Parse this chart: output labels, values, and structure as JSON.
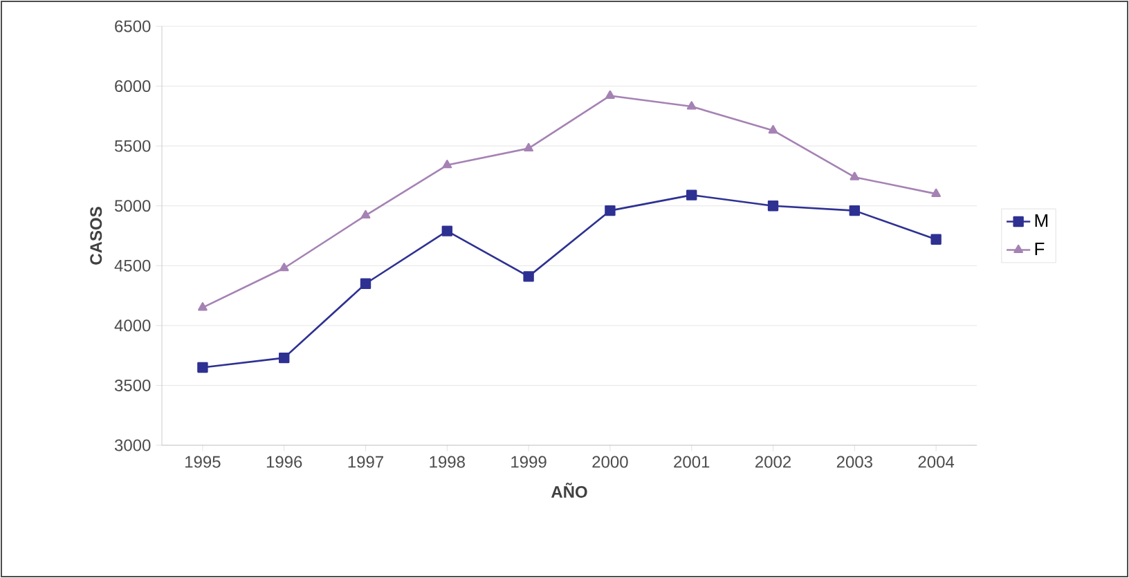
{
  "chart_data": {
    "type": "line",
    "xlabel": "AÑO",
    "ylabel": "CASOS",
    "categories": [
      "1995",
      "1996",
      "1997",
      "1998",
      "1999",
      "2000",
      "2001",
      "2002",
      "2003",
      "2004"
    ],
    "series": [
      {
        "name": "M",
        "color": "#2e3192",
        "marker": "square",
        "values": [
          3650,
          3730,
          4350,
          4790,
          4410,
          4960,
          5090,
          5000,
          4960,
          4720
        ]
      },
      {
        "name": "F",
        "color": "#a582b4",
        "marker": "triangle",
        "values": [
          4150,
          4480,
          4920,
          5340,
          5480,
          5920,
          5830,
          5630,
          5240,
          5100
        ]
      }
    ],
    "ylim": [
      3000,
      6500
    ],
    "yticks": [
      3000,
      3500,
      4000,
      4500,
      5000,
      5500,
      6000,
      6500
    ],
    "grid": "y",
    "legend": "right",
    "line_style": "solid"
  }
}
